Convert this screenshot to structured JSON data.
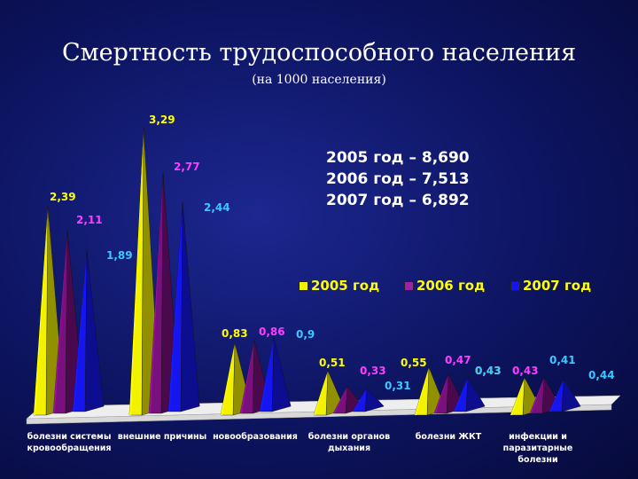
{
  "title": "Смертность трудоспособного населения",
  "subtitle": "(на 1000 населения)",
  "totals": [
    "2005 год – 8,690",
    "2006 год – 7,513",
    "2007 год – 6,892"
  ],
  "colors": {
    "series_2005": "#f2f200",
    "series_2006": "#7a0f7e",
    "series_2007": "#1515f0",
    "label_2005": "#ffff00",
    "label_2006": "#ff3cff",
    "label_2007": "#3cc8ff",
    "floor": "#d8d8d8"
  },
  "chart_data": {
    "type": "bar",
    "categories": [
      "болезни системы кровообращения",
      "внешние причины",
      "новообразования",
      "болезни органов дыхания",
      "болезни ЖКТ",
      "инфекции и паразитарные болезни"
    ],
    "category_lines": [
      [
        "болезни системы",
        "кровообращения"
      ],
      [
        "внешние причины"
      ],
      [
        "новообразования"
      ],
      [
        "болезни органов",
        "дыхания"
      ],
      [
        "болезни ЖКТ"
      ],
      [
        "инфекции и",
        "паразитарные",
        "болезни"
      ]
    ],
    "series": [
      {
        "name": "2005 год",
        "values": [
          2.39,
          3.29,
          0.83,
          0.51,
          0.55,
          0.43
        ]
      },
      {
        "name": "2006 год",
        "values": [
          2.11,
          2.77,
          0.86,
          0.33,
          0.47,
          0.43
        ]
      },
      {
        "name": "2007 год",
        "values": [
          1.89,
          2.44,
          0.9,
          0.31,
          0.43,
          0.41
        ]
      }
    ],
    "value_labels": [
      [
        "2,39",
        "3,29",
        "0,83",
        "0,51",
        "0,55",
        "0,43"
      ],
      [
        "2,11",
        "2,77",
        "0,86",
        "0,33",
        "0,47",
        "0,43"
      ],
      [
        "1,89",
        "2,44",
        "0,9",
        "0,31",
        "0,43",
        "0,41"
      ]
    ],
    "extra_label": "0,44",
    "ylim": [
      0,
      3.5
    ],
    "grid": false,
    "legend_position": "right"
  }
}
